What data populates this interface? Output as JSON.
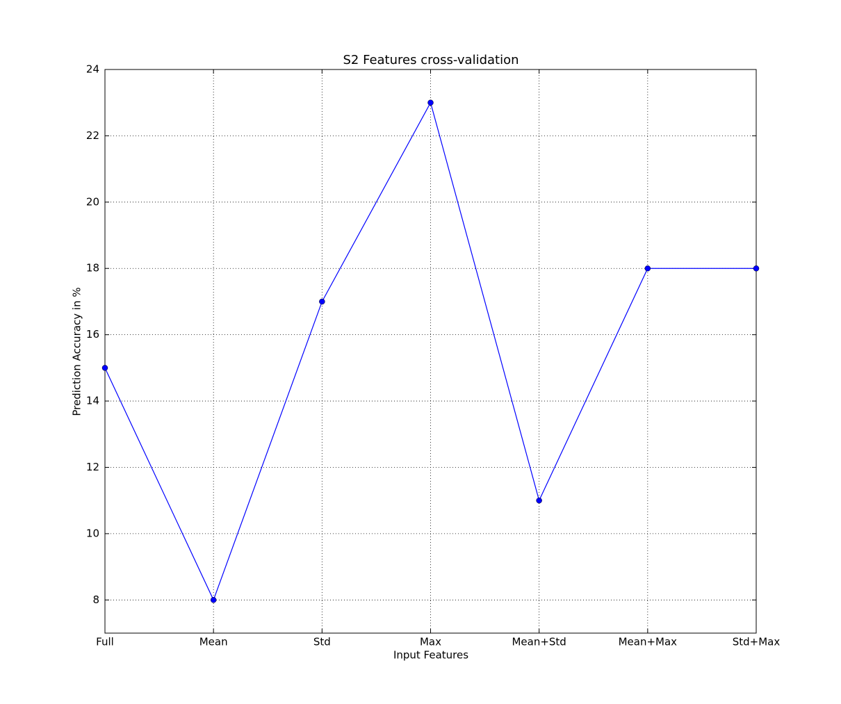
{
  "chart_data": {
    "type": "line",
    "title": "S2 Features cross-validation",
    "xlabel": "Input Features",
    "ylabel": "Prediction Accuracy in %",
    "categories": [
      "Full",
      "Mean",
      "Std",
      "Max",
      "Mean+Std",
      "Mean+Max",
      "Std+Max"
    ],
    "values": [
      15,
      8,
      17,
      23,
      11,
      18,
      18
    ],
    "color": "#0000ff",
    "ylim": [
      7,
      24
    ],
    "yticks": [
      8,
      10,
      12,
      14,
      16,
      18,
      20,
      22,
      24
    ],
    "grid": true
  }
}
